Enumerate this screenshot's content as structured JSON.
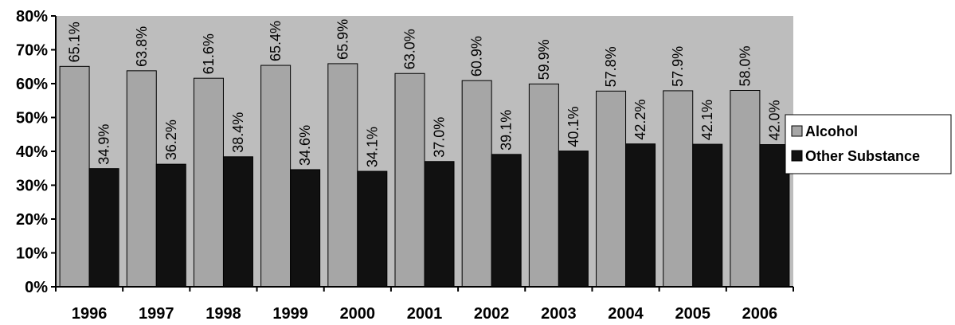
{
  "chart_data": {
    "type": "bar",
    "categories": [
      "1996",
      "1997",
      "1998",
      "1999",
      "2000",
      "2001",
      "2002",
      "2003",
      "2004",
      "2005",
      "2006"
    ],
    "series": [
      {
        "name": "Alcohol",
        "values": [
          65.1,
          63.8,
          61.6,
          65.4,
          65.9,
          63.0,
          60.9,
          59.9,
          57.8,
          57.9,
          58.0
        ],
        "labels": [
          "65.1%",
          "63.8%",
          "61.6%",
          "65.4%",
          "65.9%",
          "63.0%",
          "60.9%",
          "59.9%",
          "57.8%",
          "57.9%",
          "58.0%"
        ],
        "color": "#a6a6a6"
      },
      {
        "name": "Other Substance",
        "values": [
          34.9,
          36.2,
          38.4,
          34.6,
          34.1,
          37.0,
          39.1,
          40.1,
          42.2,
          42.1,
          42.0
        ],
        "labels": [
          "34.9%",
          "36.2%",
          "38.4%",
          "34.6%",
          "34.1%",
          "37.0%",
          "39.1%",
          "40.1%",
          "42.2%",
          "42.1%",
          "42.0%"
        ],
        "color": "#111111"
      }
    ],
    "y_ticks": [
      "0%",
      "10%",
      "20%",
      "30%",
      "40%",
      "50%",
      "60%",
      "70%",
      "80%"
    ],
    "ylim": [
      0,
      80
    ],
    "plot_background": "#bdbdbd",
    "grid": false,
    "legend_position": "right"
  }
}
